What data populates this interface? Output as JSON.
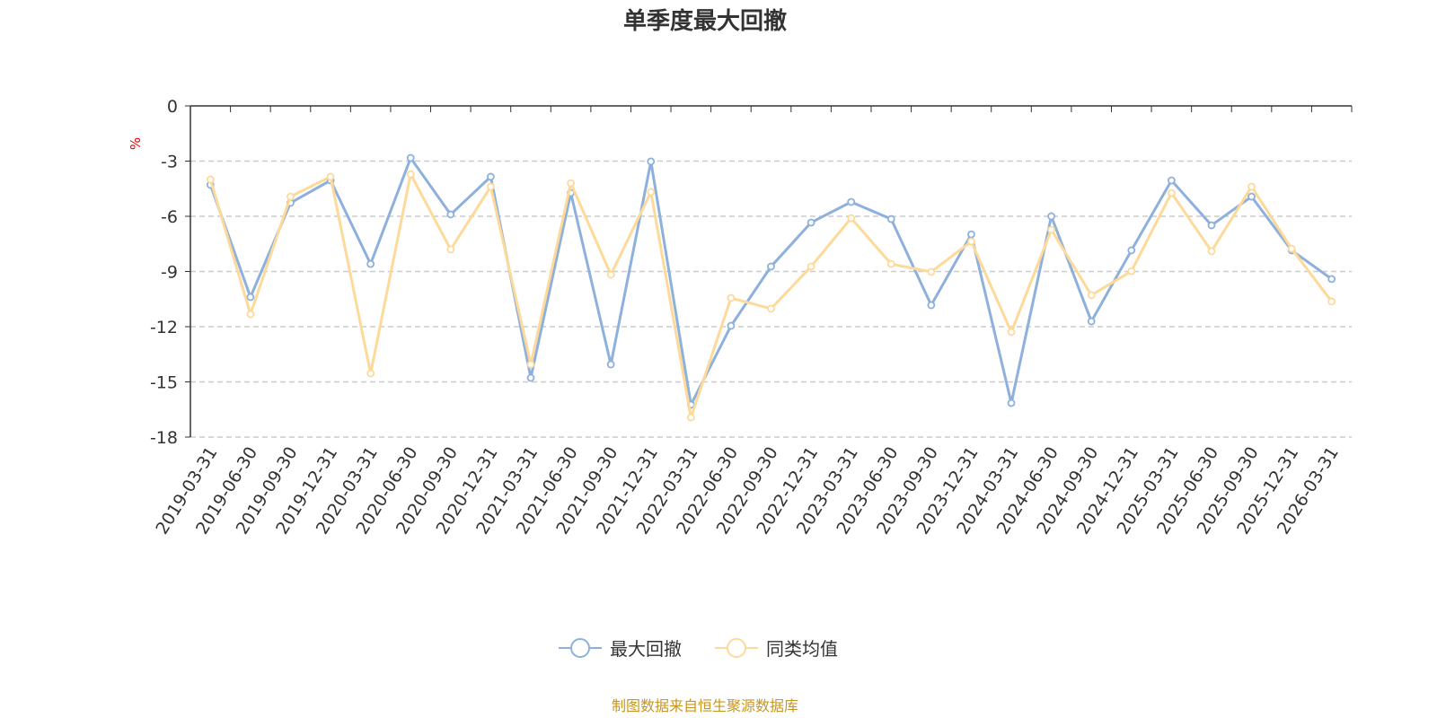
{
  "chart_data": {
    "type": "line",
    "title": "单季度最大回撤",
    "ylabel": "%",
    "xlabel": "",
    "ylim": [
      -18,
      0
    ],
    "yticks": [
      0,
      -3,
      -6,
      -9,
      -12,
      -15,
      -18
    ],
    "grid": true,
    "legend_position": "bottom",
    "categories": [
      "2019-03-31",
      "2019-06-30",
      "2019-09-30",
      "2019-12-31",
      "2020-03-31",
      "2020-06-30",
      "2020-09-30",
      "2020-12-31",
      "2021-03-31",
      "2021-06-30",
      "2021-09-30",
      "2021-12-31",
      "2022-03-31",
      "2022-06-30",
      "2022-09-30",
      "2022-12-31",
      "2023-03-31",
      "2023-06-30",
      "2023-09-30",
      "2023-12-31",
      "2024-03-31",
      "2024-06-30",
      "2024-09-30",
      "2024-12-31",
      "2025-03-31",
      "2025-06-30",
      "2025-09-30",
      "2025-12-31",
      "2026-03-31"
    ],
    "series": [
      {
        "name": "最大回撤",
        "color": "#8eb0dc",
        "values": [
          -4.29,
          -10.39,
          -5.27,
          -4.05,
          -8.59,
          -2.83,
          -5.9,
          -3.85,
          -14.78,
          -4.73,
          -14.05,
          -3.02,
          -16.24,
          -11.95,
          -8.73,
          -6.34,
          -5.22,
          -6.15,
          -10.83,
          -6.98,
          -16.15,
          -6.0,
          -11.71,
          -7.85,
          -4.05,
          -6.49,
          -4.93,
          -7.85,
          -9.41
        ]
      },
      {
        "name": "同类均值",
        "color": "#fdd99a",
        "values": [
          -4.0,
          -11.32,
          -4.93,
          -3.85,
          -14.54,
          -3.71,
          -7.8,
          -4.39,
          -14.05,
          -4.2,
          -9.17,
          -4.68,
          -16.93,
          -10.44,
          -11.02,
          -8.73,
          -6.1,
          -8.59,
          -9.02,
          -7.37,
          -12.29,
          -6.73,
          -10.29,
          -8.98,
          -4.73,
          -7.9,
          -4.39,
          -7.76,
          -10.63
        ]
      }
    ]
  },
  "footer": {
    "source": "制图数据来自恒生聚源数据库"
  }
}
